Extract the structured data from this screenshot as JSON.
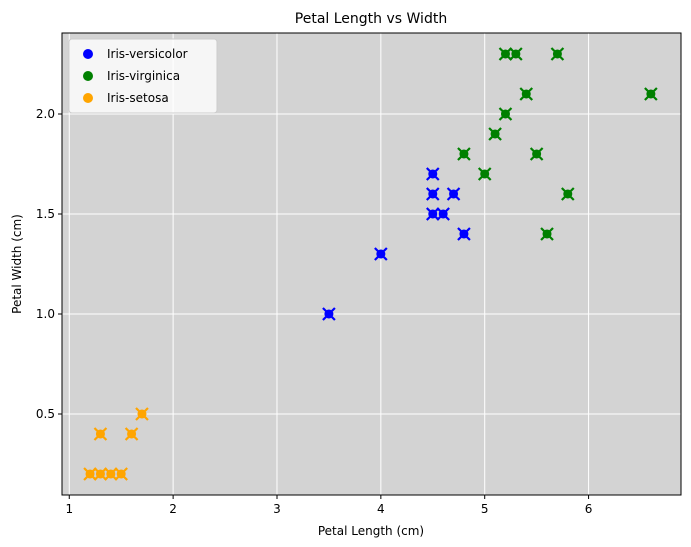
{
  "chart_data": {
    "type": "scatter",
    "title": "Petal Length vs Width",
    "xlabel": "Petal Length (cm)",
    "ylabel": "Petal Width (cm)",
    "xlim": [
      0.93,
      6.89
    ],
    "ylim": [
      0.095,
      2.405
    ],
    "xticks": [
      1,
      2,
      3,
      4,
      5,
      6
    ],
    "xtick_labels": [
      "1",
      "2",
      "3",
      "4",
      "5",
      "6"
    ],
    "yticks": [
      0.5,
      1.0,
      1.5,
      2.0
    ],
    "ytick_labels": [
      "0.5",
      "1.0",
      "1.5",
      "2.0"
    ],
    "grid": true,
    "plot_background": "#d3d3d3",
    "legend_position": "upper-left",
    "cross_marker_overlay": true,
    "series": [
      {
        "name": "Iris-versicolor",
        "color": "#0000ff",
        "points": [
          {
            "x": 3.5,
            "y": 1.0
          },
          {
            "x": 4.0,
            "y": 1.3
          },
          {
            "x": 4.5,
            "y": 1.5
          },
          {
            "x": 4.6,
            "y": 1.5
          },
          {
            "x": 4.5,
            "y": 1.6
          },
          {
            "x": 4.5,
            "y": 1.7
          },
          {
            "x": 4.7,
            "y": 1.6
          },
          {
            "x": 4.8,
            "y": 1.4
          }
        ]
      },
      {
        "name": "Iris-virginica",
        "color": "#008000",
        "points": [
          {
            "x": 4.8,
            "y": 1.8
          },
          {
            "x": 5.0,
            "y": 1.7
          },
          {
            "x": 5.1,
            "y": 1.9
          },
          {
            "x": 5.2,
            "y": 2.0
          },
          {
            "x": 5.2,
            "y": 2.3
          },
          {
            "x": 5.3,
            "y": 2.3
          },
          {
            "x": 5.4,
            "y": 2.1
          },
          {
            "x": 5.5,
            "y": 1.8
          },
          {
            "x": 5.6,
            "y": 1.4
          },
          {
            "x": 5.7,
            "y": 2.3
          },
          {
            "x": 5.8,
            "y": 1.6
          },
          {
            "x": 6.6,
            "y": 2.1
          }
        ]
      },
      {
        "name": "Iris-setosa",
        "color": "#ffa500",
        "points": [
          {
            "x": 1.2,
            "y": 0.2
          },
          {
            "x": 1.3,
            "y": 0.2
          },
          {
            "x": 1.4,
            "y": 0.2
          },
          {
            "x": 1.5,
            "y": 0.2
          },
          {
            "x": 1.3,
            "y": 0.4
          },
          {
            "x": 1.6,
            "y": 0.4
          },
          {
            "x": 1.7,
            "y": 0.5
          }
        ]
      }
    ]
  }
}
